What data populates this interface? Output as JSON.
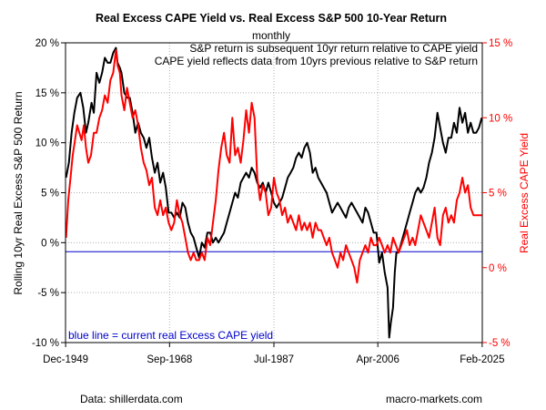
{
  "chart_data": {
    "type": "line",
    "title": "Real Excess CAPE Yield vs. Real Excess S&P 500 10-Year Return",
    "subtitle": "monthly",
    "left_axis": {
      "label": "Rolling 10yr Real Excess S&P 500 Return",
      "ylim": [
        -10,
        20
      ],
      "ticks": [
        "-10 %",
        "-5 %",
        "0 %",
        "5 %",
        "10 %",
        "15 %",
        "20 %"
      ]
    },
    "right_axis": {
      "label": "Real Excess CAPE Yield",
      "color": "#ff0000",
      "ylim": [
        -5,
        15
      ],
      "ticks": [
        "-5 %",
        "0 %",
        "5 %",
        "10 %",
        "15 %"
      ]
    },
    "x_axis": {
      "xlim": [
        1949.9,
        2025.1
      ],
      "ticks": [
        {
          "value": 1949.92,
          "label": "Dec-1949"
        },
        {
          "value": 1968.67,
          "label": "Sep-1968"
        },
        {
          "value": 1987.5,
          "label": "Jul-1987"
        },
        {
          "value": 2006.25,
          "label": "Apr-2006"
        },
        {
          "value": 2025.08,
          "label": "Feb-2025"
        }
      ]
    },
    "grid": true,
    "annotations": {
      "line1": "S&P return is subsequent 10yr return relative to CAPE yield",
      "line2": "CAPE yield reflects data from 10yrs previous relative to S&P return",
      "blue_line_note": "blue line = current real Excess CAPE yield"
    },
    "reference_line": {
      "axis": "left",
      "value": -0.9,
      "color": "#0000cc"
    },
    "series": [
      {
        "axis": "left",
        "color": "#000000",
        "x": [
          1950.0,
          1950.5,
          1951.0,
          1951.5,
          1952.0,
          1952.6,
          1953.1,
          1953.6,
          1954.0,
          1954.6,
          1955.0,
          1955.5,
          1956.0,
          1956.5,
          1957.0,
          1957.5,
          1958.0,
          1958.5,
          1959.0,
          1959.3,
          1959.7,
          1960.0,
          1960.5,
          1961.0,
          1961.5,
          1962.0,
          1962.5,
          1963.0,
          1963.5,
          1964.0,
          1964.5,
          1965.0,
          1965.5,
          1966.0,
          1966.5,
          1967.0,
          1967.5,
          1968.0,
          1968.5,
          1969.0,
          1969.5,
          1970.0,
          1970.5,
          1971.0,
          1971.5,
          1972.0,
          1972.5,
          1973.0,
          1973.5,
          1974.0,
          1974.5,
          1975.0,
          1975.5,
          1976.0,
          1976.5,
          1977.0,
          1977.5,
          1978.0,
          1978.5,
          1979.0,
          1979.5,
          1980.0,
          1980.5,
          1981.0,
          1981.5,
          1982.0,
          1982.5,
          1983.0,
          1983.5,
          1984.0,
          1984.5,
          1985.0,
          1985.5,
          1986.0,
          1986.5,
          1987.0,
          1987.5,
          1988.0,
          1988.5,
          1989.0,
          1989.5,
          1990.0,
          1990.5,
          1991.0,
          1991.5,
          1992.0,
          1992.5,
          1993.0,
          1993.5,
          1994.0,
          1994.5,
          1995.0,
          1995.5,
          1996.0,
          1996.5,
          1997.0,
          1997.5,
          1998.0,
          1998.5,
          1999.0,
          1999.5,
          2000.0,
          2000.5,
          2001.0,
          2001.5,
          2002.0,
          2002.5,
          2003.0,
          2003.5,
          2004.0,
          2004.5,
          2005.0,
          2005.5,
          2006.0,
          2006.5,
          2007.0,
          2007.5,
          2008.0,
          2008.3,
          2008.6,
          2009.0,
          2009.3,
          2009.6,
          2010.0,
          2010.5,
          2011.0,
          2011.5,
          2012.0,
          2012.5,
          2013.0,
          2013.5,
          2014.0,
          2014.5,
          2015.0,
          2015.5,
          2016.0,
          2016.5,
          2017.0,
          2017.5,
          2018.0,
          2018.5,
          2019.0,
          2019.5,
          2020.0,
          2020.5,
          2021.0,
          2021.5,
          2022.0,
          2022.5,
          2023.0,
          2023.5,
          2024.0,
          2024.5,
          2025.0
        ],
        "values": [
          6.5,
          8.0,
          11.0,
          13.0,
          14.5,
          15.0,
          13.5,
          11.0,
          12.0,
          14.0,
          13.0,
          17.0,
          16.0,
          17.0,
          18.5,
          18.0,
          18.0,
          19.0,
          19.5,
          18.0,
          17.5,
          17.0,
          15.0,
          14.5,
          14.5,
          13.0,
          11.0,
          12.0,
          11.0,
          10.5,
          9.5,
          10.5,
          8.5,
          7.0,
          8.0,
          6.0,
          7.0,
          5.5,
          3.0,
          3.0,
          2.5,
          3.0,
          2.5,
          4.0,
          3.5,
          2.0,
          1.0,
          0.5,
          -0.5,
          -1.5,
          0.0,
          -0.5,
          1.0,
          1.0,
          0.0,
          0.5,
          0.0,
          0.5,
          1.0,
          2.0,
          3.0,
          4.0,
          5.0,
          4.5,
          6.0,
          6.5,
          7.0,
          6.5,
          7.5,
          7.0,
          6.0,
          5.5,
          6.0,
          5.0,
          6.0,
          5.0,
          4.0,
          3.5,
          4.0,
          4.5,
          5.5,
          6.5,
          7.0,
          7.5,
          8.5,
          9.0,
          8.5,
          9.5,
          10.0,
          9.0,
          7.0,
          7.5,
          6.5,
          6.0,
          5.5,
          5.0,
          4.0,
          3.0,
          3.5,
          4.0,
          3.5,
          3.0,
          2.5,
          3.5,
          4.0,
          3.5,
          3.0,
          2.5,
          2.0,
          3.5,
          3.0,
          2.0,
          1.0,
          1.0,
          -2.0,
          -1.0,
          -3.0,
          -4.5,
          -9.5,
          -8.0,
          -6.5,
          -3.0,
          -1.0,
          -1.0,
          0.0,
          1.0,
          2.0,
          3.0,
          4.0,
          5.0,
          5.5,
          5.0,
          5.5,
          6.5,
          8.0,
          9.0,
          10.5,
          13.0,
          11.5,
          10.0,
          9.0,
          10.5,
          10.5,
          12.0,
          11.0,
          13.5,
          12.0,
          13.0,
          11.0,
          12.0,
          11.0,
          11.0,
          11.5,
          12.5
        ]
      },
      {
        "axis": "right",
        "color": "#ff0000",
        "x": [
          1950.0,
          1950.4,
          1950.8,
          1951.2,
          1951.6,
          1952.0,
          1952.4,
          1952.8,
          1953.2,
          1953.6,
          1954.0,
          1954.5,
          1955.0,
          1955.5,
          1956.0,
          1956.5,
          1957.0,
          1957.5,
          1958.0,
          1958.5,
          1959.0,
          1959.3,
          1959.7,
          1960.0,
          1960.5,
          1961.0,
          1961.5,
          1962.0,
          1962.5,
          1963.0,
          1963.5,
          1964.0,
          1964.5,
          1965.0,
          1965.5,
          1966.0,
          1966.5,
          1967.0,
          1967.5,
          1968.0,
          1968.5,
          1969.0,
          1969.5,
          1970.0,
          1970.5,
          1971.0,
          1971.5,
          1972.0,
          1972.5,
          1973.0,
          1973.5,
          1974.0,
          1974.5,
          1975.0,
          1975.5,
          1976.0,
          1976.5,
          1977.0,
          1977.5,
          1978.0,
          1978.5,
          1979.0,
          1979.5,
          1980.0,
          1980.5,
          1981.0,
          1981.5,
          1982.0,
          1982.5,
          1983.0,
          1983.5,
          1984.0,
          1984.5,
          1985.0,
          1985.5,
          1986.0,
          1986.5,
          1987.0,
          1987.5,
          1988.0,
          1988.5,
          1989.0,
          1989.5,
          1990.0,
          1990.5,
          1991.0,
          1991.5,
          1992.0,
          1992.5,
          1993.0,
          1993.5,
          1994.0,
          1994.5,
          1995.0,
          1995.5,
          1996.0,
          1996.5,
          1997.0,
          1997.5,
          1998.0,
          1998.5,
          1999.0,
          1999.5,
          2000.0,
          2000.5,
          2001.0,
          2001.5,
          2002.0,
          2002.5,
          2003.0,
          2003.5,
          2004.0,
          2004.5,
          2005.0,
          2005.5,
          2006.0,
          2006.5,
          2007.0,
          2007.5,
          2008.0,
          2008.5,
          2009.0,
          2009.5,
          2010.0,
          2010.5,
          2011.0,
          2011.5,
          2012.0,
          2012.5,
          2013.0,
          2013.5,
          2014.0,
          2014.5,
          2015.0,
          2015.5,
          2016.0,
          2016.5,
          2017.0,
          2017.5,
          2018.0,
          2018.5,
          2019.0,
          2019.5,
          2020.0,
          2020.5,
          2021.0,
          2021.5,
          2022.0,
          2022.5,
          2023.0,
          2023.5,
          2024.0,
          2024.5,
          2025.0
        ],
        "values": [
          2.0,
          4.5,
          6.0,
          7.5,
          8.5,
          9.5,
          9.0,
          8.5,
          9.5,
          8.0,
          7.0,
          7.5,
          9.0,
          9.0,
          10.0,
          10.5,
          11.5,
          11.0,
          12.5,
          13.0,
          14.5,
          13.5,
          13.0,
          11.5,
          10.5,
          12.0,
          11.0,
          10.0,
          10.5,
          9.5,
          8.0,
          7.0,
          6.5,
          5.5,
          6.0,
          4.0,
          3.5,
          4.5,
          3.5,
          4.0,
          3.0,
          2.5,
          3.0,
          4.5,
          3.5,
          3.0,
          2.0,
          1.0,
          0.5,
          1.0,
          0.5,
          0.5,
          1.0,
          0.5,
          2.0,
          1.5,
          3.0,
          4.5,
          6.5,
          8.0,
          9.0,
          7.5,
          7.0,
          10.0,
          7.5,
          8.0,
          7.0,
          8.5,
          10.5,
          9.0,
          11.0,
          10.0,
          6.0,
          4.5,
          5.5,
          5.0,
          3.5,
          4.0,
          6.0,
          5.0,
          4.5,
          3.5,
          4.0,
          3.0,
          3.5,
          3.0,
          2.5,
          3.5,
          2.5,
          3.0,
          2.5,
          3.0,
          2.0,
          3.0,
          2.5,
          2.5,
          2.0,
          1.5,
          2.0,
          1.0,
          0.5,
          0.0,
          1.0,
          0.5,
          1.5,
          1.0,
          0.5,
          0.0,
          -1.0,
          0.5,
          1.0,
          1.5,
          1.0,
          2.0,
          1.5,
          1.5,
          2.0,
          1.5,
          1.0,
          1.5,
          1.0,
          2.0,
          1.5,
          1.0,
          1.5,
          2.0,
          2.5,
          1.5,
          2.0,
          1.5,
          2.5,
          3.5,
          3.0,
          2.5,
          2.0,
          3.0,
          4.0,
          2.0,
          1.5,
          3.5,
          4.0,
          3.0,
          3.5,
          3.0,
          4.5,
          5.0,
          6.0,
          5.0,
          5.5,
          4.0,
          3.5,
          3.5,
          3.5,
          3.5
        ]
      }
    ],
    "footer_left": "Data: shillerdata.com",
    "footer_right": "macro-markets.com"
  }
}
